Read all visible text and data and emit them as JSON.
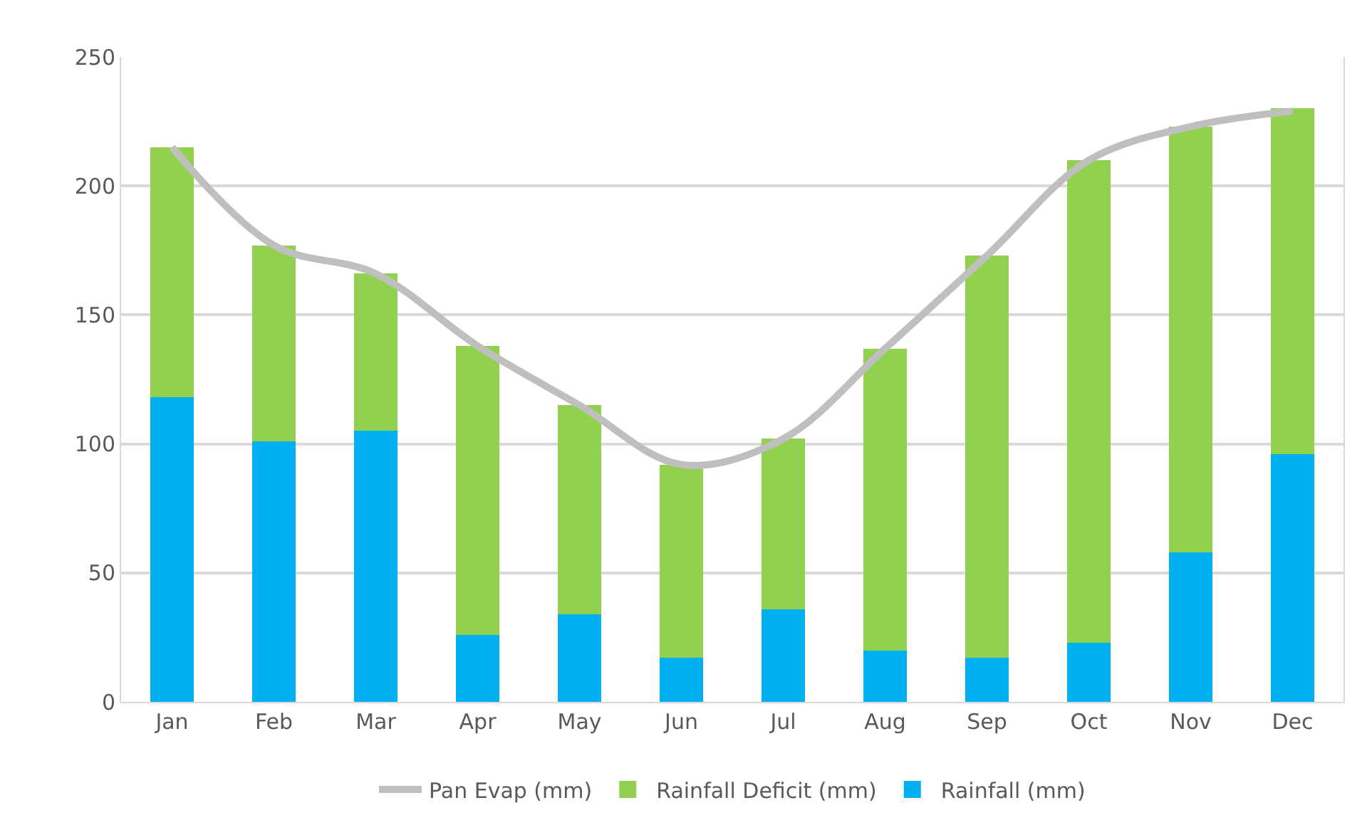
{
  "chart_data": {
    "type": "bar",
    "stacked": true,
    "categories": [
      "Jan",
      "Feb",
      "Mar",
      "Apr",
      "May",
      "Jun",
      "Jul",
      "Aug",
      "Sep",
      "Oct",
      "Nov",
      "Dec"
    ],
    "series": [
      {
        "name": "Rainfall (mm)",
        "color": "#00b0f0",
        "values": [
          118,
          101,
          105,
          26,
          34,
          17,
          36,
          20,
          17,
          23,
          58,
          96
        ]
      },
      {
        "name": "Rainfall Deficit (mm)",
        "color": "#92d050",
        "values": [
          97,
          76,
          61,
          112,
          81,
          75,
          66,
          117,
          156,
          187,
          165,
          134
        ]
      },
      {
        "name": "Pan Evap (mm)",
        "type": "line",
        "color": "#bfbfbf",
        "values": [
          215,
          177,
          166,
          138,
          115,
          92,
          102,
          137,
          173,
          210,
          223,
          229
        ]
      }
    ],
    "ylim": [
      0,
      250
    ],
    "yticks": [
      0,
      50,
      100,
      150,
      200,
      250
    ],
    "grid": "y",
    "legend": "bottom"
  }
}
